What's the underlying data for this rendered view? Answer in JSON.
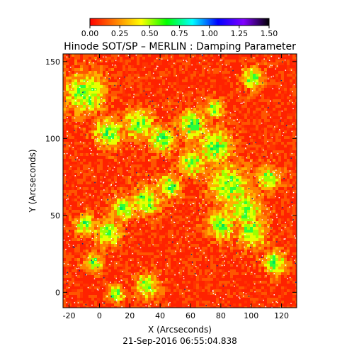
{
  "chart_data": {
    "type": "heatmap",
    "title": "Hinode SOT/SP – MERLIN : Damping Parameter",
    "xlabel": "X (Arcseconds)",
    "ylabel": "Y (Arcseconds)",
    "footer": "21-Sep-2016 06:55:04.838",
    "xlim": [
      -24,
      130
    ],
    "ylim": [
      -10,
      155
    ],
    "xticks": [
      -20,
      0,
      20,
      40,
      60,
      80,
      100,
      120
    ],
    "yticks": [
      0,
      50,
      100,
      150
    ],
    "colorbar": {
      "range": [
        0.0,
        1.5
      ],
      "ticks": [
        "0.00",
        "0.25",
        "0.50",
        "0.75",
        "1.00",
        "1.25",
        "1.50"
      ],
      "colors": [
        "#ff0000",
        "#ff7f00",
        "#ffff00",
        "#00ff00",
        "#00ffff",
        "#0000ff",
        "#8000ff",
        "#000000"
      ]
    },
    "grid": false
  }
}
